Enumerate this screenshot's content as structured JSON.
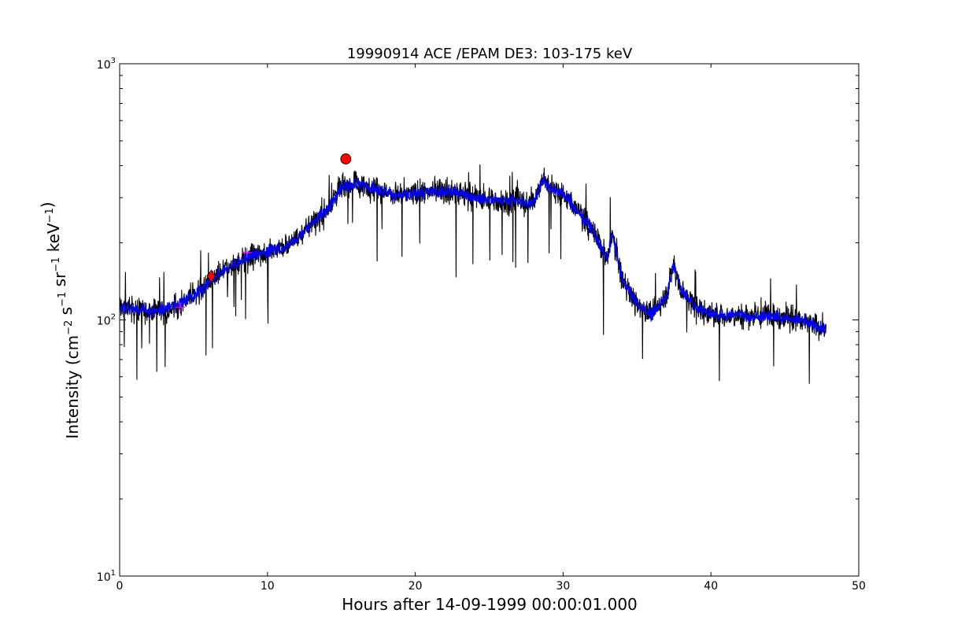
{
  "chart_data": {
    "type": "line",
    "title": "19990914 ACE /EPAM DE3: 103-175 keV",
    "xlabel": "Hours after 14-09-1999 00:00:01.000",
    "ylabel": {
      "parts": [
        {
          "t": "Intensity (cm",
          "sup": false
        },
        {
          "t": "−2",
          "sup": true
        },
        {
          "t": " s",
          "sup": false
        },
        {
          "t": "−1",
          "sup": true
        },
        {
          "t": " sr",
          "sup": false
        },
        {
          "t": "−1",
          "sup": true
        },
        {
          "t": " keV",
          "sup": false
        },
        {
          "t": "−1",
          "sup": true
        },
        {
          "t": ")",
          "sup": false
        }
      ]
    },
    "xlim": [
      0,
      50
    ],
    "ylim": [
      10,
      1000
    ],
    "yscale": "log",
    "grid": false,
    "x_ticks": [
      0,
      10,
      20,
      30,
      40,
      50
    ],
    "x_tick_labels": [
      "0",
      "10",
      "20",
      "30",
      "40",
      "50"
    ],
    "y_ticks": [
      {
        "value": 10,
        "base": "10",
        "exp": "1"
      },
      {
        "value": 100,
        "base": "10",
        "exp": "2"
      },
      {
        "value": 1000,
        "base": "10",
        "exp": "3"
      }
    ],
    "series": [
      {
        "role": "raw",
        "color": "#000000",
        "x_end": 47.8,
        "envelope": [
          [
            0,
            112
          ],
          [
            1,
            110
          ],
          [
            2,
            108
          ],
          [
            3,
            110
          ],
          [
            4,
            115
          ],
          [
            5,
            125
          ],
          [
            6,
            138
          ],
          [
            7,
            155
          ],
          [
            8,
            168
          ],
          [
            9,
            178
          ],
          [
            10,
            185
          ],
          [
            11,
            192
          ],
          [
            12,
            205
          ],
          [
            13,
            240
          ],
          [
            14,
            265
          ],
          [
            15,
            330
          ],
          [
            16,
            340
          ],
          [
            17,
            330
          ],
          [
            18,
            315
          ],
          [
            19,
            305
          ],
          [
            20,
            310
          ],
          [
            21,
            318
          ],
          [
            22,
            320
          ],
          [
            23,
            312
          ],
          [
            24,
            300
          ],
          [
            25,
            295
          ],
          [
            26,
            293
          ],
          [
            27,
            290
          ],
          [
            28,
            285
          ],
          [
            28.7,
            360
          ],
          [
            29,
            330
          ],
          [
            30,
            310
          ],
          [
            31,
            265
          ],
          [
            32,
            225
          ],
          [
            33,
            170
          ],
          [
            33.3,
            220
          ],
          [
            34,
            145
          ],
          [
            35,
            115
          ],
          [
            36,
            105
          ],
          [
            37,
            125
          ],
          [
            37.5,
            165
          ],
          [
            38,
            130
          ],
          [
            39,
            112
          ],
          [
            40,
            105
          ],
          [
            41,
            104
          ],
          [
            42,
            105
          ],
          [
            43,
            102
          ],
          [
            44,
            105
          ],
          [
            45,
            102
          ],
          [
            46,
            100
          ],
          [
            47,
            95
          ],
          [
            47.8,
            92
          ]
        ]
      },
      {
        "role": "smoothed",
        "color": "#0000ff",
        "x_end": 47.8
      }
    ],
    "markers": [
      {
        "x": 15.3,
        "y": 425,
        "shape": "circle",
        "color": "#ff0000"
      },
      {
        "x": 6.2,
        "y": 148,
        "shape": "diamond",
        "color": "#ff0000"
      },
      {
        "x": 4.1,
        "y": 112,
        "shape": "plus",
        "color": "#ff00ff"
      },
      {
        "x": 8.6,
        "y": 183,
        "shape": "plus",
        "color": "#ff00ff"
      }
    ]
  }
}
